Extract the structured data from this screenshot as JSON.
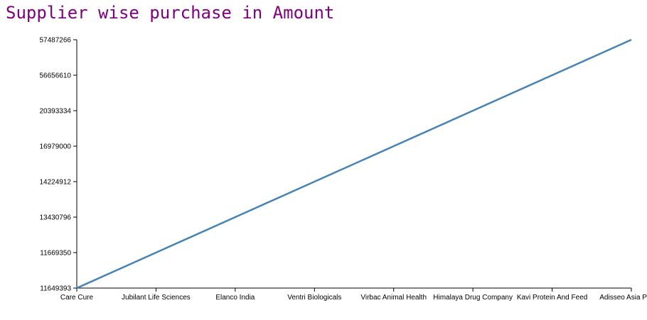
{
  "chart_data": {
    "type": "line",
    "title": "Supplier wise purchase in Amount",
    "xlabel": "",
    "ylabel": "",
    "categories": [
      "Care Cure",
      "Jubilant Life Sciences",
      "Elanco India",
      "Ventri Biologicals",
      "Virbac Animal Health",
      "Himalaya Drug Company",
      "Kavi Protein And Feed",
      "Adisseo Asia Pacific"
    ],
    "y_ticks": [
      "11649393",
      "11669350",
      "13430796",
      "14224912",
      "16979000",
      "20393334",
      "56656610",
      "57487266"
    ],
    "series": [
      {
        "values": [
          "11649393",
          "11669350",
          "13430796",
          "14224912",
          "16979000",
          "20393334",
          "56656610",
          "57487266"
        ]
      }
    ],
    "y_scale": "ordinal",
    "grid": false,
    "line_color": "#4682b4"
  }
}
